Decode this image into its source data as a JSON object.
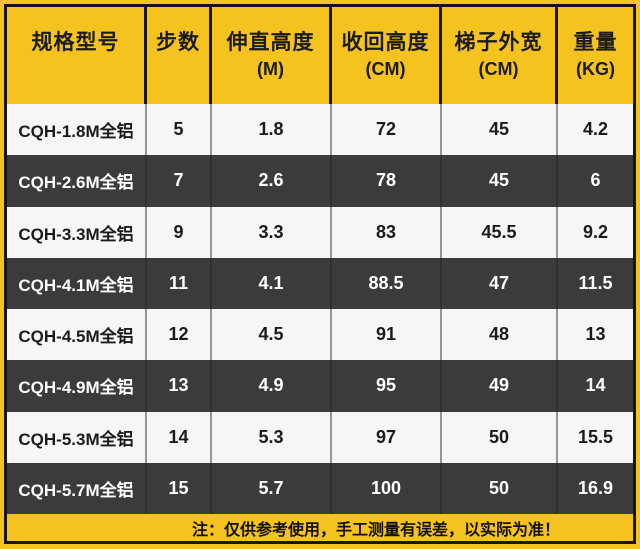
{
  "table": {
    "columns": [
      {
        "label": "规格型号",
        "unit": ""
      },
      {
        "label": "步数",
        "unit": ""
      },
      {
        "label": "伸直高度",
        "unit": "(M)"
      },
      {
        "label": "收回高度",
        "unit": "(CM)"
      },
      {
        "label": "梯子外宽",
        "unit": "(CM)"
      },
      {
        "label": "重量",
        "unit": "(KG)"
      }
    ],
    "rows": [
      [
        "CQH-1.8M全铝",
        "5",
        "1.8",
        "72",
        "45",
        "4.2"
      ],
      [
        "CQH-2.6M全铝",
        "7",
        "2.6",
        "78",
        "45",
        "6"
      ],
      [
        "CQH-3.3M全铝",
        "9",
        "3.3",
        "83",
        "45.5",
        "9.2"
      ],
      [
        "CQH-4.1M全铝",
        "11",
        "4.1",
        "88.5",
        "47",
        "11.5"
      ],
      [
        "CQH-4.5M全铝",
        "12",
        "4.5",
        "91",
        "48",
        "13"
      ],
      [
        "CQH-4.9M全铝",
        "13",
        "4.9",
        "95",
        "49",
        "14"
      ],
      [
        "CQH-5.3M全铝",
        "14",
        "5.3",
        "97",
        "50",
        "15.5"
      ],
      [
        "CQH-5.7M全铝",
        "15",
        "5.7",
        "100",
        "50",
        "16.9"
      ]
    ]
  },
  "footer": {
    "note": "注：仅供参考使用，手工测量有误差，以实际为准！"
  },
  "colors": {
    "brand_yellow": "#f5c320",
    "dark_row": "#3b3b3b",
    "light_row": "#f6f6f6",
    "border_black": "#161616"
  }
}
